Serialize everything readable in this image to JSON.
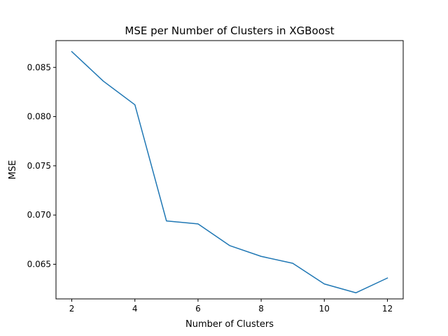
{
  "chart_data": {
    "type": "line",
    "title": "MSE per Number of Clusters in XGBoost",
    "xlabel": "Number of Clusters",
    "ylabel": "MSE",
    "x": [
      2,
      3,
      4,
      5,
      6,
      7,
      8,
      9,
      10,
      11,
      12
    ],
    "series": [
      {
        "values": [
          0.0866,
          0.0836,
          0.0812,
          0.0694,
          0.0691,
          0.0669,
          0.0658,
          0.0651,
          0.063,
          0.0621,
          0.0636
        ],
        "color": "#1f77b4"
      }
    ],
    "xlim": [
      1.5,
      12.5
    ],
    "ylim": [
      0.06148,
      0.08772
    ],
    "xticks": [
      2,
      4,
      6,
      8,
      10,
      12
    ],
    "xtick_labels": [
      "2",
      "4",
      "6",
      "8",
      "10",
      "12"
    ],
    "yticks": [
      0.065,
      0.07,
      0.075,
      0.08,
      0.085
    ],
    "ytick_labels": [
      "0.065",
      "0.070",
      "0.075",
      "0.080",
      "0.085"
    ],
    "grid": false,
    "legend": "none"
  }
}
